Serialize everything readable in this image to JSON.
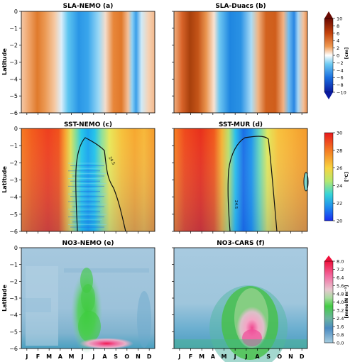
{
  "months": [
    "J",
    "F",
    "M",
    "A",
    "M",
    "J",
    "J",
    "A",
    "S",
    "O",
    "N",
    "D"
  ],
  "y_ticks": [
    "0",
    "−1",
    "−2",
    "−3",
    "−4",
    "−5",
    "−6"
  ],
  "y_label": "Latitude",
  "rows": [
    {
      "name": "sla",
      "panels": [
        {
          "title": "SLA-NEMO (a)"
        },
        {
          "title": "SLA-Duacs (b)"
        }
      ],
      "colorbar": {
        "unit": "[cm]",
        "ticks": [
          "10",
          "8",
          "6",
          "4",
          "2",
          "0",
          "−2",
          "−4",
          "−6",
          "−8",
          "−10"
        ],
        "range": [
          -11,
          11
        ]
      }
    },
    {
      "name": "sst",
      "panels": [
        {
          "title": "SST-NEMO (c)",
          "contour_label": "24.5"
        },
        {
          "title": "SST-MUR (d)",
          "contour_label": "24.5"
        }
      ],
      "colorbar": {
        "unit": "[°C]",
        "ticks": [
          "30",
          "28",
          "26",
          "24",
          "22",
          "20"
        ],
        "range": [
          20,
          30
        ]
      }
    },
    {
      "name": "no3",
      "panels": [
        {
          "title": "NO3-NEMO (e)"
        },
        {
          "title": "NO3-CARS (f)"
        }
      ],
      "colorbar": {
        "unit": "[mmolN m⁻³]",
        "ticks": [
          "8.0",
          "7.2",
          "6.4",
          "5.6",
          "4.8",
          "4.0",
          "3.2",
          "2.4",
          "1.6",
          "0.8",
          "0.0"
        ],
        "range": [
          0,
          8
        ]
      }
    }
  ],
  "colors": {
    "sla_neg": "#1f4fd6",
    "sla_pos": "#c0500a",
    "sst_hot": "#e8402a",
    "sst_cold": "#1750e0",
    "no3_low": "#a8c9df",
    "no3_mid": "#4fc84f",
    "no3_high": "#f02060"
  },
  "chart_data": [
    {
      "type": "heatmap",
      "title": "SLA-NEMO (a)",
      "ylabel": "Latitude",
      "ylim": [
        -6,
        0
      ],
      "x": [
        "J",
        "F",
        "M",
        "A",
        "M",
        "J",
        "J",
        "A",
        "S",
        "O",
        "N",
        "D"
      ],
      "unit": "[cm]",
      "zonal_mean_by_month": [
        4,
        7,
        5,
        1,
        -4,
        -8,
        -6,
        -2,
        4,
        6,
        -3,
        -6
      ]
    },
    {
      "type": "heatmap",
      "title": "SLA-Duacs (b)",
      "ylabel": "Latitude",
      "ylim": [
        -6,
        0
      ],
      "x": [
        "J",
        "F",
        "M",
        "A",
        "M",
        "J",
        "J",
        "A",
        "S",
        "O",
        "N",
        "D"
      ],
      "unit": "[cm]",
      "zonal_mean_by_month": [
        5,
        8,
        7,
        2,
        -4,
        -7,
        -6,
        -1,
        5,
        7,
        -2,
        -6
      ]
    },
    {
      "type": "heatmap",
      "title": "SST-NEMO (c)",
      "ylabel": "Latitude",
      "ylim": [
        -6,
        0
      ],
      "x": [
        "J",
        "F",
        "M",
        "A",
        "M",
        "J",
        "J",
        "A",
        "S",
        "O",
        "N",
        "D"
      ],
      "unit": "[°C]",
      "zonal_mean_by_month": [
        28.5,
        29,
        29.2,
        28.6,
        27,
        24,
        23,
        24,
        25.5,
        26.5,
        26.8,
        27.2
      ],
      "contour": "24.5"
    },
    {
      "type": "heatmap",
      "title": "SST-MUR (d)",
      "ylabel": "Latitude",
      "ylim": [
        -6,
        0
      ],
      "x": [
        "J",
        "F",
        "M",
        "A",
        "M",
        "J",
        "J",
        "A",
        "S",
        "O",
        "N",
        "D"
      ],
      "unit": "[°C]",
      "zonal_mean_by_month": [
        28.4,
        29,
        29.5,
        28.8,
        26.5,
        23.5,
        23,
        23.5,
        25.5,
        26.3,
        26.6,
        27
      ],
      "contour": "24.5"
    },
    {
      "type": "heatmap",
      "title": "NO3-NEMO (e)",
      "ylabel": "Latitude",
      "ylim": [
        -6,
        0
      ],
      "x": [
        "J",
        "F",
        "M",
        "A",
        "M",
        "J",
        "J",
        "A",
        "S",
        "O",
        "N",
        "D"
      ],
      "unit": "[mmolN m⁻³]",
      "zonal_mean_by_month": [
        0.3,
        0.3,
        0.2,
        0.3,
        0.6,
        2.5,
        3.2,
        1.8,
        0.6,
        0.5,
        0.7,
        0.6
      ]
    },
    {
      "type": "heatmap",
      "title": "NO3-CARS (f)",
      "ylabel": "Latitude",
      "ylim": [
        -6,
        0
      ],
      "x": [
        "J",
        "F",
        "M",
        "A",
        "M",
        "J",
        "J",
        "A",
        "S",
        "O",
        "N",
        "D"
      ],
      "unit": "[mmolN m⁻³]",
      "zonal_mean_by_month": [
        0.8,
        0.8,
        0.7,
        0.8,
        1.6,
        3.2,
        3.8,
        3.0,
        1.8,
        1.2,
        1.2,
        1.0
      ]
    }
  ]
}
